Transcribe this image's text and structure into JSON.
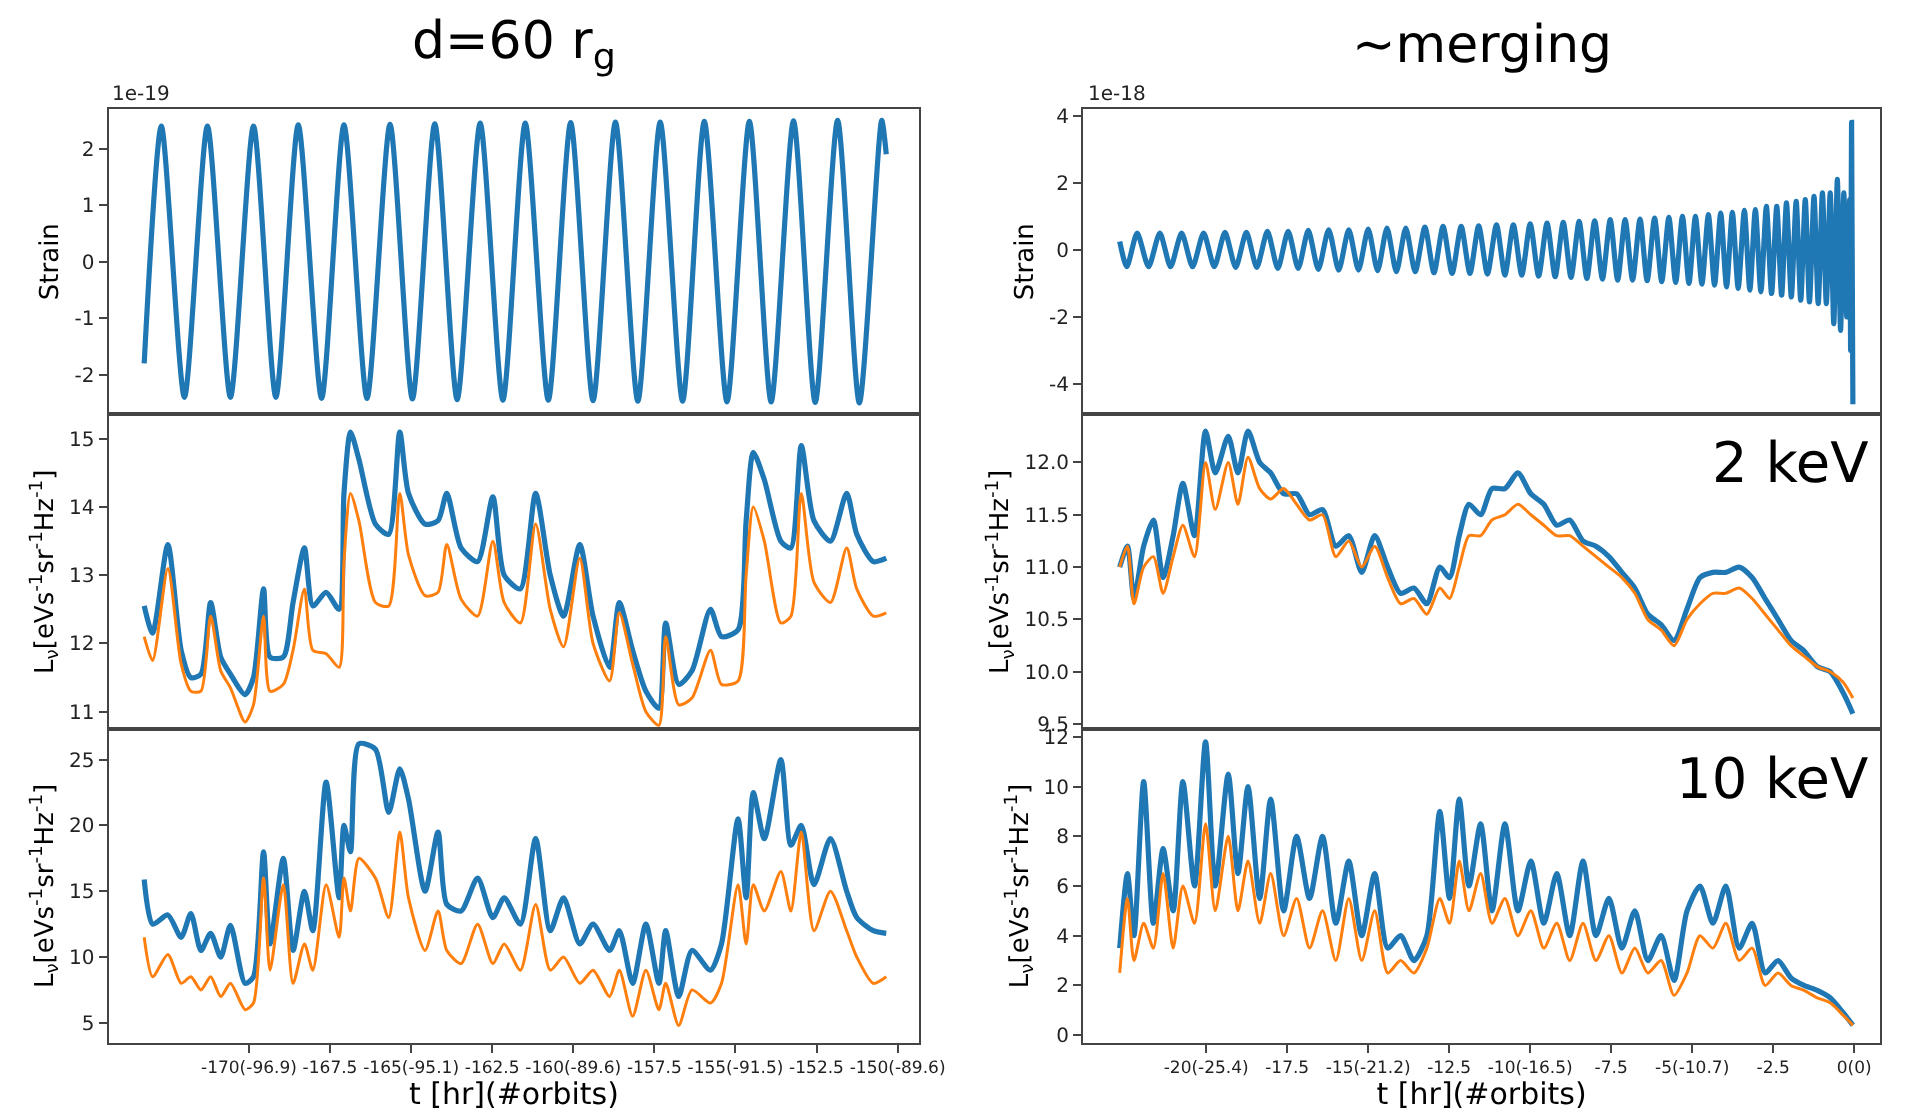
{
  "chart_data": [
    {
      "type": "line",
      "title": "d=60 r$_{g}$",
      "ylabel": "Strain",
      "annotations": [
        "1e-19"
      ],
      "tick_labels": "y",
      "xlim": [
        -174.33,
        -149.33
      ],
      "ylim": [
        -2.7,
        2.7
      ],
      "yticks": [
        -2,
        -1,
        0,
        1,
        2
      ],
      "x": [
        -173.23,
        -172.7,
        -171.99,
        -171.28,
        -170.57,
        -169.86,
        -169.17,
        -168.48,
        -167.76,
        -167.07,
        -166.36,
        -165.65,
        -164.96,
        -164.27,
        -163.58,
        -162.87,
        -162.17,
        -161.48,
        -160.77,
        -160.08,
        -159.39,
        -158.7,
        -158.01,
        -157.32,
        -156.63,
        -155.96,
        -155.26,
        -154.57,
        -153.9,
        -153.21,
        -152.54,
        -151.85,
        -151.18,
        -150.49,
        -150.35
      ],
      "series": [
        {
          "color": "#1f77b4",
          "values": [
            -1.8,
            2.4,
            -2.4,
            2.4,
            -2.4,
            2.4,
            -2.4,
            2.42,
            -2.42,
            2.42,
            -2.42,
            2.43,
            -2.43,
            2.44,
            -2.44,
            2.45,
            -2.45,
            2.45,
            -2.45,
            2.46,
            -2.46,
            2.47,
            -2.47,
            2.47,
            -2.47,
            2.48,
            -2.48,
            2.48,
            -2.48,
            2.49,
            -2.49,
            2.5,
            -2.5,
            2.5,
            1.9
          ]
        }
      ]
    },
    {
      "type": "line",
      "title": "~merging",
      "ylabel": "Strain",
      "annotations": [
        "1e-18"
      ],
      "tick_labels": "y",
      "xlim": [
        -23.8,
        0.8
      ],
      "ylim": [
        -4.9,
        4.2
      ],
      "yticks": [
        -4,
        -2,
        0,
        2,
        4
      ],
      "x": [
        -22.67,
        -22.45,
        -22.13,
        -21.78,
        -21.43,
        -21.1,
        -20.76,
        -20.42,
        -20.08,
        -19.75,
        -19.42,
        -19.09,
        -18.76,
        -18.44,
        -18.11,
        -17.79,
        -17.47,
        -17.16,
        -16.85,
        -16.54,
        -16.22,
        -15.91,
        -15.6,
        -15.3,
        -15.0,
        -14.71,
        -14.42,
        -14.13,
        -13.84,
        -13.55,
        -13.25,
        -12.97,
        -12.69,
        -12.41,
        -12.13,
        -11.86,
        -11.59,
        -11.32,
        -11.04,
        -10.78,
        -10.52,
        -10.26,
        -10.0,
        -9.74,
        -9.48,
        -9.23,
        -8.98,
        -8.74,
        -8.49,
        -8.25,
        -8.01,
        -7.77,
        -7.53,
        -7.3,
        -7.07,
        -6.84,
        -6.61,
        -6.39,
        -6.16,
        -5.94,
        -5.72,
        -5.51,
        -5.3,
        -5.1,
        -4.9,
        -4.7,
        -4.5,
        -4.31,
        -4.12,
        -3.94,
        -3.76,
        -3.58,
        -3.39,
        -3.22,
        -3.05,
        -2.88,
        -2.71,
        -2.55,
        -2.39,
        -2.24,
        -2.09,
        -1.94,
        -1.79,
        -1.65,
        -1.51,
        -1.38,
        -1.24,
        -1.11,
        -0.98,
        -0.86,
        -0.74,
        -0.63,
        -0.52,
        -0.42,
        -0.32,
        -0.23,
        -0.14,
        -0.11,
        -0.08,
        -0.04
      ],
      "series": [
        {
          "color": "#1f77b4",
          "values": [
            0.25,
            -0.5,
            0.5,
            -0.5,
            0.5,
            -0.5,
            0.5,
            -0.5,
            0.5,
            -0.5,
            0.52,
            -0.52,
            0.52,
            -0.52,
            0.55,
            -0.55,
            0.55,
            -0.55,
            0.58,
            -0.58,
            0.6,
            -0.6,
            0.6,
            -0.6,
            0.62,
            -0.62,
            0.65,
            -0.65,
            0.65,
            -0.65,
            0.68,
            -0.68,
            0.7,
            -0.7,
            0.7,
            -0.7,
            0.72,
            -0.72,
            0.75,
            -0.75,
            0.75,
            -0.75,
            0.78,
            -0.78,
            0.8,
            -0.8,
            0.82,
            -0.82,
            0.85,
            -0.85,
            0.87,
            -0.87,
            0.9,
            -0.9,
            0.9,
            -0.9,
            0.92,
            -0.92,
            0.95,
            -0.95,
            0.97,
            -0.97,
            1.0,
            -1.0,
            1.0,
            -1.02,
            1.05,
            -1.05,
            1.1,
            -1.1,
            1.12,
            -1.15,
            1.18,
            -1.2,
            1.2,
            -1.25,
            1.3,
            -1.3,
            1.3,
            -1.35,
            1.4,
            -1.4,
            1.45,
            -1.5,
            1.5,
            -1.55,
            1.6,
            -1.6,
            1.7,
            -1.6,
            1.7,
            -2.2,
            2.1,
            -2.4,
            1.7,
            -2.0,
            1.5,
            -3.0,
            3.8,
            -4.6
          ]
        }
      ]
    },
    {
      "type": "line",
      "ylabel": "L$_{ν}$[eVs$^{-1}$sr$^{-1}$Hz$^{-1}$]",
      "tick_labels": "y",
      "xlim": [
        -174.33,
        -149.33
      ],
      "ylim": [
        10.74,
        15.36
      ],
      "yticks": [
        11,
        12,
        13,
        14,
        15
      ],
      "x": [
        -173.23,
        -172.97,
        -172.5,
        -172.09,
        -171.79,
        -171.48,
        -171.18,
        -170.87,
        -170.57,
        -170.12,
        -169.86,
        -169.55,
        -169.35,
        -168.94,
        -168.64,
        -168.29,
        -168.03,
        -167.62,
        -167.22,
        -167.07,
        -166.87,
        -166.61,
        -166.1,
        -165.69,
        -165.35,
        -165.08,
        -164.57,
        -164.17,
        -163.9,
        -163.46,
        -162.95,
        -162.48,
        -162.13,
        -161.63,
        -161.16,
        -160.71,
        -160.3,
        -159.8,
        -159.39,
        -158.88,
        -158.58,
        -158.17,
        -157.76,
        -157.36,
        -157.15,
        -156.75,
        -156.34,
        -155.77,
        -155.43,
        -154.92,
        -154.67,
        -154.45,
        -154.11,
        -153.6,
        -153.29,
        -152.97,
        -152.58,
        -152.07,
        -151.57,
        -151.26,
        -150.75,
        -150.35
      ],
      "series": [
        {
          "color": "#1f77b4",
          "values": [
            12.55,
            12.15,
            13.45,
            11.9,
            11.5,
            11.55,
            12.6,
            11.8,
            11.55,
            11.25,
            11.5,
            12.8,
            11.8,
            11.8,
            12.6,
            13.4,
            12.55,
            12.75,
            12.5,
            14.2,
            15.1,
            14.7,
            13.75,
            13.6,
            15.1,
            14.2,
            13.75,
            13.8,
            14.2,
            13.4,
            13.2,
            14.15,
            13.0,
            12.8,
            14.2,
            13.0,
            12.4,
            13.45,
            12.4,
            11.65,
            12.6,
            11.9,
            11.3,
            11.05,
            12.3,
            11.4,
            11.6,
            12.5,
            12.1,
            12.2,
            13.8,
            14.8,
            14.4,
            13.5,
            13.4,
            14.9,
            13.8,
            13.5,
            14.2,
            13.6,
            13.2,
            13.25
          ]
        },
        {
          "color": "#ff7f0e",
          "values": [
            12.1,
            11.75,
            13.1,
            11.7,
            11.3,
            11.3,
            12.4,
            11.6,
            11.35,
            10.85,
            11.1,
            12.4,
            11.3,
            11.4,
            11.9,
            12.8,
            11.9,
            11.85,
            11.65,
            13.2,
            14.2,
            13.8,
            12.6,
            12.55,
            14.2,
            13.3,
            12.7,
            12.75,
            13.45,
            12.65,
            12.4,
            13.5,
            12.6,
            12.3,
            13.75,
            12.5,
            11.95,
            13.25,
            12.0,
            11.45,
            12.45,
            11.7,
            11.0,
            10.8,
            12.1,
            11.1,
            11.2,
            11.9,
            11.4,
            11.45,
            13.0,
            14.0,
            13.5,
            12.3,
            12.4,
            14.2,
            12.9,
            12.6,
            13.4,
            12.8,
            12.4,
            12.45
          ]
        }
      ]
    },
    {
      "type": "line",
      "ylabel": "L$_{ν}$[eVs$^{-1}$sr$^{-1}$Hz$^{-1}$]",
      "annotations": [
        "2 keV"
      ],
      "tick_labels": "y",
      "xlim": [
        -23.8,
        0.8
      ],
      "ylim": [
        9.45,
        12.46
      ],
      "yticks": [
        9.5,
        {
          "value": 10,
          "label": "10.0"
        },
        10.5,
        {
          "value": 11,
          "label": "11.0"
        },
        11.5,
        {
          "value": 12,
          "label": "12.0"
        }
      ],
      "x": [
        -22.67,
        -22.43,
        -22.23,
        -21.93,
        -21.63,
        -21.33,
        -21.02,
        -20.72,
        -20.36,
        -20.02,
        -19.72,
        -19.32,
        -19.02,
        -18.71,
        -18.35,
        -18.01,
        -17.61,
        -17.21,
        -16.81,
        -16.41,
        -16.0,
        -15.6,
        -15.2,
        -14.8,
        -14.4,
        -14.0,
        -13.59,
        -13.19,
        -12.79,
        -12.49,
        -12.19,
        -11.89,
        -11.53,
        -11.18,
        -10.78,
        -10.38,
        -9.98,
        -9.58,
        -9.18,
        -8.78,
        -8.37,
        -7.97,
        -7.57,
        -7.17,
        -6.77,
        -6.37,
        -5.96,
        -5.56,
        -5.16,
        -4.76,
        -4.36,
        -3.96,
        -3.55,
        -3.15,
        -2.75,
        -2.35,
        -1.95,
        -1.55,
        -1.14,
        -0.74,
        -0.34,
        -0.04
      ],
      "series": [
        {
          "color": "#1f77b4",
          "values": [
            11.0,
            11.2,
            10.7,
            11.2,
            11.45,
            10.9,
            11.3,
            11.8,
            11.3,
            12.3,
            11.9,
            12.25,
            11.9,
            12.3,
            12.0,
            11.9,
            11.7,
            11.7,
            11.5,
            11.55,
            11.2,
            11.3,
            10.95,
            11.3,
            11.0,
            10.75,
            10.8,
            10.65,
            11.0,
            10.9,
            11.3,
            11.6,
            11.5,
            11.75,
            11.75,
            11.9,
            11.7,
            11.6,
            11.4,
            11.45,
            11.25,
            11.2,
            11.1,
            10.95,
            10.8,
            10.55,
            10.45,
            10.3,
            10.6,
            10.9,
            10.95,
            10.95,
            11.0,
            10.9,
            10.7,
            10.5,
            10.3,
            10.2,
            10.05,
            10.0,
            9.8,
            9.6
          ]
        },
        {
          "color": "#ff7f0e",
          "values": [
            11.0,
            11.2,
            10.65,
            11.0,
            11.1,
            10.75,
            11.1,
            11.4,
            11.1,
            12.0,
            11.55,
            12.0,
            11.6,
            12.05,
            11.75,
            11.65,
            11.75,
            11.6,
            11.45,
            11.5,
            11.1,
            11.25,
            11.0,
            11.2,
            10.9,
            10.65,
            10.7,
            10.55,
            10.8,
            10.7,
            11.0,
            11.3,
            11.3,
            11.45,
            11.5,
            11.6,
            11.5,
            11.4,
            11.3,
            11.3,
            11.2,
            11.1,
            11.0,
            10.9,
            10.75,
            10.5,
            10.4,
            10.25,
            10.5,
            10.65,
            10.75,
            10.75,
            10.8,
            10.7,
            10.55,
            10.4,
            10.25,
            10.15,
            10.05,
            10.0,
            9.9,
            9.75
          ]
        }
      ]
    },
    {
      "type": "line",
      "ylabel": "L$_{ν}$[eVs$^{-1}$sr$^{-1}$Hz$^{-1}$]",
      "xlabel": "t [hr](#orbits)",
      "xlim": [
        -174.33,
        -149.33
      ],
      "ylim": [
        3.5,
        27.3
      ],
      "yticks": [
        5,
        10,
        15,
        20,
        25
      ],
      "xticks": [
        {
          "value": -170,
          "label": "-170(-96.9)"
        },
        -167.5,
        {
          "value": -165,
          "label": "-165(-95.1)"
        },
        -162.5,
        {
          "value": -160,
          "label": "-160(-89.6)"
        },
        -157.5,
        {
          "value": -155,
          "label": "-155(-91.5)"
        },
        -152.5,
        {
          "value": -150,
          "label": "-150(-89.6)"
        }
      ],
      "x": [
        -173.23,
        -172.97,
        -172.5,
        -172.09,
        -171.79,
        -171.48,
        -171.18,
        -170.87,
        -170.57,
        -170.12,
        -169.86,
        -169.55,
        -169.35,
        -168.94,
        -168.64,
        -168.29,
        -168.03,
        -167.62,
        -167.22,
        -167.07,
        -166.87,
        -166.61,
        -166.1,
        -165.69,
        -165.35,
        -165.08,
        -164.57,
        -164.17,
        -163.9,
        -163.46,
        -162.95,
        -162.48,
        -162.13,
        -161.63,
        -161.16,
        -160.71,
        -160.3,
        -159.8,
        -159.39,
        -158.88,
        -158.58,
        -158.17,
        -157.76,
        -157.36,
        -157.15,
        -156.75,
        -156.34,
        -155.77,
        -155.43,
        -154.92,
        -154.67,
        -154.45,
        -154.11,
        -153.6,
        -153.29,
        -152.97,
        -152.58,
        -152.07,
        -151.57,
        -151.26,
        -150.75,
        -150.35
      ],
      "series": [
        {
          "color": "#1f77b4",
          "values": [
            15.9,
            12.5,
            13.2,
            11.5,
            13.3,
            10.5,
            11.8,
            10.0,
            12.4,
            8.0,
            8.5,
            18.0,
            11,
            17.5,
            10.5,
            15.0,
            12.0,
            23.3,
            14.5,
            20.0,
            18.0,
            26.2,
            25.8,
            21.0,
            24.3,
            22.0,
            15.0,
            19.5,
            14.0,
            13.5,
            16.0,
            13.0,
            14.5,
            12.5,
            19.0,
            12.0,
            14.5,
            11.0,
            12.5,
            10.5,
            12.0,
            8.0,
            12.5,
            8.0,
            12.0,
            7.0,
            10.5,
            9.0,
            11.0,
            20.5,
            14.5,
            22.5,
            19.0,
            25.0,
            18.5,
            20.0,
            15.5,
            19.0,
            15.0,
            13.0,
            12.0,
            11.8
          ]
        },
        {
          "color": "#ff7f0e",
          "values": [
            11.5,
            8.5,
            10.2,
            8.0,
            8.5,
            7.5,
            8.5,
            7.0,
            8.0,
            6.0,
            6.5,
            16.0,
            9.0,
            15.5,
            8.0,
            11.0,
            9.0,
            15.5,
            11.5,
            16.0,
            13.5,
            17.5,
            16.0,
            13.0,
            19.5,
            14.5,
            10.5,
            13.5,
            10.5,
            9.5,
            12.5,
            9.5,
            11.0,
            9.0,
            14.0,
            9.0,
            10.0,
            8.0,
            9.0,
            7.0,
            9.0,
            5.5,
            9.0,
            6.0,
            8.0,
            4.8,
            7.5,
            6.5,
            8.0,
            15.5,
            11.0,
            15.5,
            13.5,
            16.5,
            13.5,
            19.5,
            12.0,
            15.0,
            12.0,
            10.0,
            8.0,
            8.5
          ]
        }
      ]
    },
    {
      "type": "line",
      "ylabel": "L$_{ν}$[eVs$^{-1}$sr$^{-1}$Hz$^{-1}$]",
      "xlabel": "t [hr](#orbits)",
      "annotations": [
        "10 keV"
      ],
      "xlim": [
        -23.8,
        0.8
      ],
      "ylim": [
        -0.3,
        12.3
      ],
      "yticks": [
        0,
        2,
        4,
        6,
        8,
        10,
        12
      ],
      "xticks": [
        {
          "value": -20,
          "label": "-20(-25.4)"
        },
        -17.5,
        {
          "value": -15,
          "label": "-15(-21.2)"
        },
        -12.5,
        {
          "value": -10,
          "label": "-10(-16.5)"
        },
        -7.5,
        {
          "value": -5,
          "label": "-5(-10.7)"
        },
        -2.5,
        {
          "value": 0,
          "label": "0(0)"
        }
      ],
      "x": [
        -22.67,
        -22.43,
        -22.23,
        -21.93,
        -21.63,
        -21.33,
        -21.02,
        -20.72,
        -20.36,
        -20.02,
        -19.72,
        -19.32,
        -19.02,
        -18.71,
        -18.35,
        -18.01,
        -17.61,
        -17.21,
        -16.81,
        -16.41,
        -16.0,
        -15.6,
        -15.2,
        -14.8,
        -14.4,
        -14.0,
        -13.59,
        -13.19,
        -12.79,
        -12.49,
        -12.19,
        -11.89,
        -11.53,
        -11.18,
        -10.78,
        -10.38,
        -9.98,
        -9.58,
        -9.18,
        -8.78,
        -8.37,
        -7.97,
        -7.57,
        -7.17,
        -6.77,
        -6.37,
        -5.96,
        -5.56,
        -5.16,
        -4.76,
        -4.36,
        -3.96,
        -3.55,
        -3.15,
        -2.75,
        -2.35,
        -1.95,
        -1.55,
        -1.14,
        -0.74,
        -0.34,
        -0.04
      ],
      "series": [
        {
          "color": "#1f77b4",
          "values": [
            3.5,
            6.5,
            4.0,
            10.2,
            4.5,
            7.5,
            5.0,
            10.2,
            6.0,
            11.8,
            6.0,
            10.5,
            6.5,
            10.0,
            5.5,
            9.5,
            5.0,
            8.0,
            5.5,
            8.0,
            4.5,
            7.0,
            4.0,
            6.5,
            3.5,
            4.0,
            3.0,
            4.0,
            9.0,
            5.5,
            9.5,
            6.0,
            8.5,
            5.0,
            8.5,
            5.0,
            7.0,
            4.5,
            6.5,
            4.0,
            7.0,
            4.0,
            5.5,
            3.5,
            5.0,
            3.0,
            4.0,
            2.2,
            5.0,
            6.0,
            4.5,
            6.0,
            3.5,
            4.5,
            2.5,
            3.0,
            2.3,
            2.0,
            1.8,
            1.5,
            0.9,
            0.4
          ]
        },
        {
          "color": "#ff7f0e",
          "values": [
            2.5,
            5.5,
            3.0,
            4.5,
            3.5,
            6.5,
            3.5,
            6.0,
            4.5,
            8.5,
            5.0,
            8.0,
            5.0,
            7.0,
            4.5,
            6.5,
            4.0,
            5.5,
            3.5,
            5.0,
            3.0,
            5.5,
            3.0,
            5.0,
            2.5,
            3.0,
            2.5,
            3.5,
            5.5,
            4.5,
            7.0,
            5.0,
            6.5,
            4.5,
            5.5,
            4.0,
            5.0,
            3.5,
            4.5,
            3.0,
            4.5,
            3.0,
            4.0,
            2.5,
            3.5,
            2.5,
            3.0,
            1.6,
            2.5,
            4.0,
            3.5,
            4.5,
            3.0,
            3.5,
            2.0,
            2.5,
            2.0,
            1.8,
            1.5,
            1.3,
            0.8,
            0.4
          ]
        }
      ]
    }
  ]
}
